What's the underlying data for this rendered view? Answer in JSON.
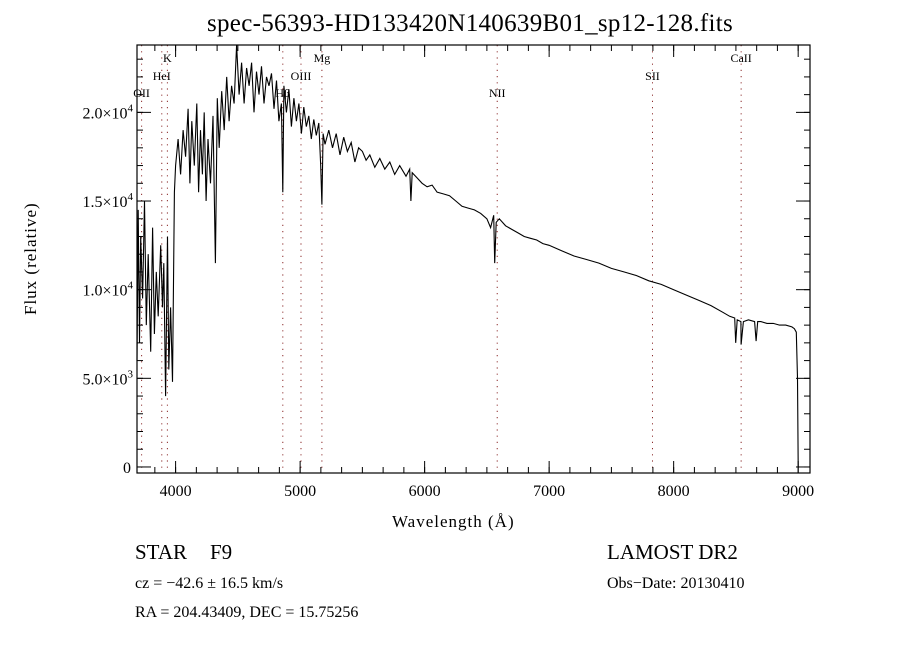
{
  "chart_data": {
    "type": "line",
    "title": "spec-56393-HD133420N140639B01_sp12-128.fits",
    "xlabel": "Wavelength (Å)",
    "ylabel": "Flux (relative)",
    "xlim": [
      3690,
      9095
    ],
    "ylim": [
      -340,
      23800
    ],
    "grid": false,
    "x_ticks": [
      {
        "value": 4000,
        "label": "4000"
      },
      {
        "value": 5000,
        "label": "5000"
      },
      {
        "value": 6000,
        "label": "6000"
      },
      {
        "value": 7000,
        "label": "7000"
      },
      {
        "value": 8000,
        "label": "8000"
      },
      {
        "value": 9000,
        "label": "9000"
      }
    ],
    "y_ticks": [
      {
        "value": 0,
        "mantissa": "0",
        "exp": ""
      },
      {
        "value": 5000,
        "mantissa": "5.0×10",
        "exp": "3"
      },
      {
        "value": 10000,
        "mantissa": "1.0×10",
        "exp": "4"
      },
      {
        "value": 15000,
        "mantissa": "1.5×10",
        "exp": "4"
      },
      {
        "value": 20000,
        "mantissa": "2.0×10",
        "exp": "4"
      }
    ],
    "line_markers": [
      {
        "label": "OII",
        "wavelength": 3727,
        "row": 3
      },
      {
        "label": "HeI",
        "wavelength": 3889,
        "row": 2
      },
      {
        "label": "K",
        "wavelength": 3934,
        "row": 1
      },
      {
        "label": "Hβ",
        "wavelength": 4861,
        "row": 3
      },
      {
        "label": "OIII",
        "wavelength": 5007,
        "row": 2
      },
      {
        "label": "Mg",
        "wavelength": 5175,
        "row": 1
      },
      {
        "label": "NII",
        "wavelength": 6583,
        "row": 3
      },
      {
        "label": "SII",
        "wavelength": 7830,
        "row": 2
      },
      {
        "label": "CaII",
        "wavelength": 8542,
        "row": 1
      }
    ],
    "series": [
      {
        "name": "spectrum",
        "color": "#000000",
        "x": [
          3690,
          3700,
          3710,
          3720,
          3735,
          3750,
          3765,
          3780,
          3800,
          3815,
          3830,
          3845,
          3860,
          3880,
          3895,
          3905,
          3920,
          3935,
          3945,
          3960,
          3975,
          3990,
          4000,
          4020,
          4040,
          4060,
          4080,
          4100,
          4115,
          4130,
          4150,
          4170,
          4185,
          4200,
          4215,
          4230,
          4245,
          4260,
          4280,
          4300,
          4320,
          4335,
          4350,
          4370,
          4390,
          4410,
          4430,
          4450,
          4470,
          4490,
          4510,
          4530,
          4550,
          4570,
          4590,
          4610,
          4630,
          4650,
          4670,
          4690,
          4710,
          4730,
          4750,
          4770,
          4790,
          4810,
          4830,
          4850,
          4861,
          4870,
          4890,
          4910,
          4930,
          4950,
          4970,
          4990,
          5010,
          5030,
          5050,
          5070,
          5090,
          5110,
          5130,
          5150,
          5165,
          5175,
          5185,
          5200,
          5230,
          5260,
          5290,
          5320,
          5350,
          5380,
          5410,
          5440,
          5470,
          5500,
          5530,
          5560,
          5600,
          5640,
          5680,
          5720,
          5760,
          5800,
          5850,
          5880,
          5890,
          5900,
          5940,
          5980,
          6020,
          6060,
          6100,
          6150,
          6200,
          6250,
          6300,
          6350,
          6400,
          6450,
          6500,
          6530,
          6555,
          6563,
          6575,
          6600,
          6650,
          6700,
          6750,
          6800,
          6850,
          6900,
          6950,
          7000,
          7100,
          7200,
          7300,
          7400,
          7500,
          7600,
          7700,
          7800,
          7900,
          8000,
          8100,
          8200,
          8300,
          8400,
          8450,
          8490,
          8498,
          8510,
          8540,
          8542,
          8560,
          8600,
          8650,
          8662,
          8675,
          8700,
          8750,
          8800,
          8850,
          8900,
          8950,
          8970,
          8985,
          8995,
          9000
        ],
        "y": [
          6000,
          14500,
          7000,
          13000,
          9500,
          15000,
          8000,
          12000,
          6500,
          13500,
          7500,
          11000,
          8500,
          12500,
          9000,
          11500,
          4000,
          13000,
          5500,
          9000,
          4800,
          15500,
          17000,
          18500,
          16500,
          19000,
          17500,
          20200,
          16000,
          19500,
          17000,
          20500,
          15500,
          19000,
          16500,
          20000,
          15000,
          18500,
          16000,
          19800,
          11500,
          20800,
          18000,
          21200,
          19000,
          22000,
          19500,
          21500,
          20500,
          23800,
          21000,
          22800,
          20500,
          22500,
          21500,
          22800,
          20000,
          22300,
          21000,
          22600,
          20500,
          22000,
          21500,
          22200,
          20200,
          21800,
          19500,
          20500,
          15500,
          21500,
          20000,
          21300,
          19200,
          20800,
          19500,
          20500,
          18800,
          20300,
          19200,
          19800,
          18500,
          19600,
          18700,
          19400,
          17000,
          14800,
          18800,
          18200,
          19000,
          18000,
          18800,
          17600,
          18600,
          17800,
          18300,
          17200,
          18000,
          17800,
          17300,
          17600,
          16900,
          17400,
          16800,
          17200,
          16500,
          17000,
          16400,
          16800,
          15000,
          16600,
          16300,
          16000,
          15800,
          15900,
          15500,
          15400,
          15300,
          15000,
          14700,
          14600,
          14500,
          14300,
          14000,
          13500,
          14200,
          11500,
          13800,
          14000,
          13600,
          13400,
          13200,
          13000,
          12900,
          12800,
          12600,
          12500,
          12200,
          11900,
          11700,
          11500,
          11200,
          11000,
          10800,
          10500,
          10300,
          10000,
          9700,
          9400,
          9100,
          8700,
          8500,
          8400,
          7000,
          8300,
          8200,
          6900,
          8200,
          8300,
          8200,
          7100,
          8200,
          8200,
          8100,
          8100,
          8000,
          8000,
          7900,
          7800,
          7600,
          5000,
          0
        ]
      }
    ]
  },
  "footer": {
    "object_type": "STAR",
    "subclass": "F9",
    "survey": "LAMOST DR2",
    "cz": "cz = −42.6 ± 16.5 km/s",
    "obs_date": "Obs−Date: 20130410",
    "coords": "RA = 204.43409, DEC =  15.75256"
  }
}
